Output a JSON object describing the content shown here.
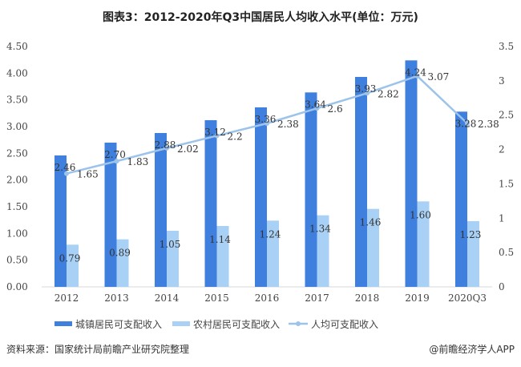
{
  "chart_data": {
    "type": "bar",
    "title": "图表3：2012-2020年Q3中国居民人均收入水平(单位：万元)",
    "categories": [
      "2012",
      "2013",
      "2014",
      "2015",
      "2016",
      "2017",
      "2018",
      "2019",
      "2020Q3"
    ],
    "series": [
      {
        "name": "城镇居民可支配收入",
        "type": "bar",
        "axis": "left",
        "color": "#3F7FDD",
        "values": [
          2.46,
          2.7,
          2.88,
          3.12,
          3.36,
          3.64,
          3.93,
          4.24,
          3.28
        ],
        "labels": [
          "2.46",
          "2.70",
          "2.88",
          "3.12",
          "3.36",
          "3.64",
          "3.93",
          "4.24",
          "3.28"
        ]
      },
      {
        "name": "农村居民可支配收入",
        "type": "bar",
        "axis": "left",
        "color": "#A9D1F5",
        "values": [
          0.79,
          0.89,
          1.05,
          1.14,
          1.24,
          1.34,
          1.46,
          1.6,
          1.23
        ],
        "labels": [
          "0.79",
          "0.89",
          "1.05",
          "1.14",
          "1.24",
          "1.34",
          "1.46",
          "1.60",
          "1.23"
        ]
      },
      {
        "name": "人均可支配收入",
        "type": "line",
        "axis": "right",
        "color": "#9CC3EA",
        "values": [
          1.65,
          1.83,
          2.02,
          2.2,
          2.38,
          2.6,
          2.82,
          3.07,
          2.38
        ],
        "labels": [
          "1.65",
          "1.83",
          "2.02",
          "2.2",
          "2.38",
          "2.6",
          "2.82",
          "3.07",
          "2.38"
        ]
      }
    ],
    "ylim": [
      0,
      4.5
    ],
    "y2lim": [
      0,
      3.5
    ],
    "yticks": [
      "0.00",
      "0.50",
      "1.00",
      "1.50",
      "2.00",
      "2.50",
      "3.00",
      "3.50",
      "4.00",
      "4.50"
    ],
    "y2ticks": [
      "0",
      "0.5",
      "1",
      "1.5",
      "2",
      "2.5",
      "3",
      "3.5"
    ],
    "grid": false,
    "legend": "bottom"
  },
  "footer": {
    "source": "资料来源：国家统计局前瞻产业研究院整理",
    "credit": "@前瞻经济学人APP"
  }
}
